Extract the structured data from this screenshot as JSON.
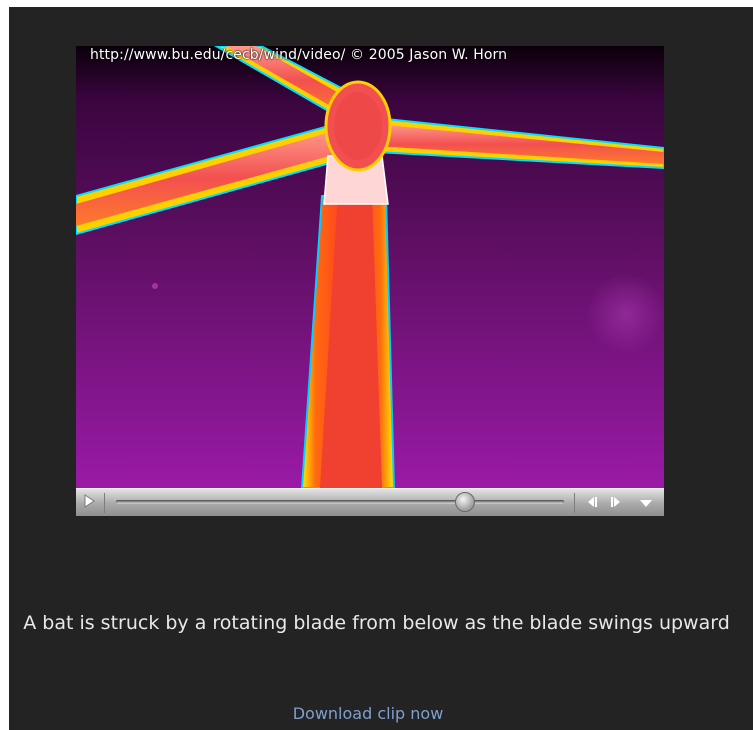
{
  "video": {
    "watermark": "http://www.bu.edu/cecb/wind/video/  © 2005 Jason W. Horn",
    "playback_progress": 0.78
  },
  "controls": {
    "play_icon": "play-icon",
    "step_back_icon": "step-back-icon",
    "step_forward_icon": "step-forward-icon",
    "menu_icon": "chevron-down-icon"
  },
  "caption": "A bat is struck by a rotating blade from below as the blade swings upward",
  "download_link": "Download clip now",
  "colors": {
    "panel_background": "#232323",
    "link": "#7f9fd0",
    "caption_text": "#e8e8e8",
    "thermal_background": "#5a0d5e"
  }
}
